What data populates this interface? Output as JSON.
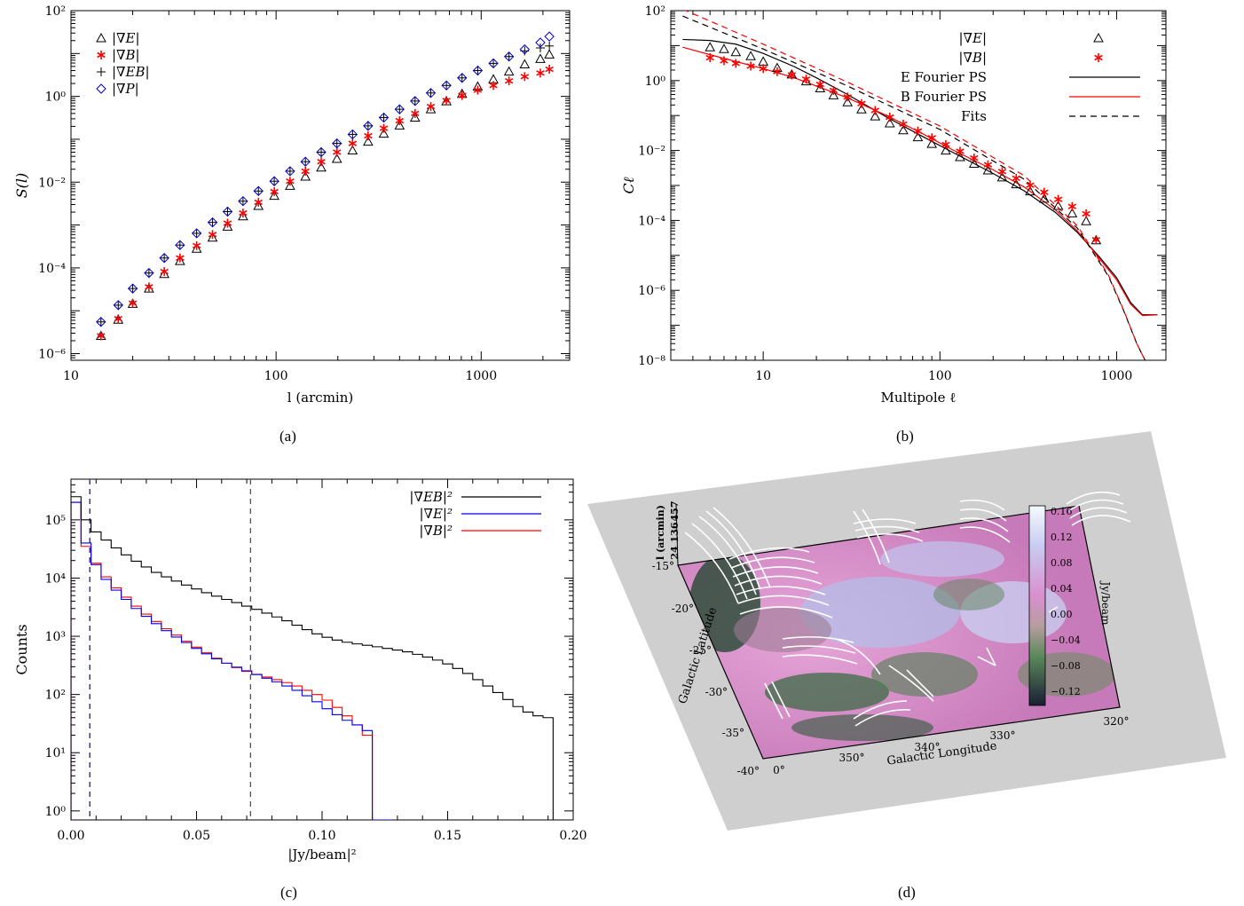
{
  "panel_labels": [
    "(a)",
    "(b)",
    "(c)",
    "(d)"
  ],
  "chart_data": [
    {
      "type": "scatter",
      "panel": "(a)",
      "xlabel": "l (arcmin)",
      "ylabel": "S(l)",
      "xscale": "log",
      "yscale": "log",
      "xlim": [
        10,
        2700
      ],
      "ylim": [
        7e-07,
        100
      ],
      "xticks": [
        "10",
        "100",
        "1000"
      ],
      "yticks": [
        "10⁻⁶",
        "10⁻⁴",
        "10⁻²",
        "10⁰",
        "10²"
      ],
      "legend": "top-left",
      "x": [
        14,
        17,
        20,
        24,
        28.5,
        34,
        41,
        49,
        58,
        69,
        82,
        98,
        117,
        139,
        166,
        198,
        236,
        281,
        335,
        400,
        476,
        568,
        677,
        807,
        962,
        1147,
        1367,
        1630,
        1943,
        2150
      ],
      "series": [
        {
          "name": "|∇E|",
          "marker": "triangle",
          "color": "#000000",
          "values": [
            2.6e-06,
            6.2e-06,
            1.45e-05,
            3.3e-05,
            7.2e-05,
            0.000145,
            0.00028,
            0.00051,
            0.00092,
            0.0016,
            0.0028,
            0.0048,
            0.0082,
            0.0135,
            0.022,
            0.035,
            0.055,
            0.088,
            0.135,
            0.21,
            0.32,
            0.5,
            0.77,
            1.15,
            1.7,
            2.5,
            3.8,
            5.6,
            7.5,
            9.5
          ]
        },
        {
          "name": "|∇B|",
          "marker": "asterisk",
          "color": "#ff0000",
          "values": [
            2.6e-06,
            6.5e-06,
            1.5e-05,
            3.6e-05,
            8.2e-05,
            0.00017,
            0.00033,
            0.0006,
            0.0011,
            0.0019,
            0.0034,
            0.006,
            0.0105,
            0.018,
            0.03,
            0.05,
            0.08,
            0.12,
            0.18,
            0.27,
            0.4,
            0.58,
            0.8,
            1.05,
            1.4,
            1.8,
            2.3,
            2.9,
            3.5,
            4.3
          ]
        },
        {
          "name": "|∇EB|",
          "marker": "plus",
          "color": "#000000",
          "values": [
            5.5e-06,
            1.35e-05,
            3.3e-05,
            7.6e-05,
            0.00017,
            0.00034,
            0.00064,
            0.00115,
            0.00205,
            0.0036,
            0.0062,
            0.0105,
            0.018,
            0.03,
            0.05,
            0.08,
            0.13,
            0.205,
            0.32,
            0.5,
            0.78,
            1.2,
            1.8,
            2.7,
            4,
            5.9,
            8.5,
            11.5,
            13.5,
            15
          ]
        },
        {
          "name": "|∇P|",
          "marker": "diamond",
          "color": "#0000cc",
          "values": [
            5.5e-06,
            1.35e-05,
            3.3e-05,
            7.6e-05,
            0.00017,
            0.00034,
            0.00064,
            0.00115,
            0.00205,
            0.0036,
            0.0062,
            0.0105,
            0.018,
            0.03,
            0.05,
            0.08,
            0.13,
            0.205,
            0.32,
            0.5,
            0.78,
            1.2,
            1.8,
            2.7,
            4,
            5.9,
            8.5,
            12.5,
            18,
            25
          ]
        }
      ]
    },
    {
      "type": "line",
      "panel": "(b)",
      "xlabel": "Multipole ℓ",
      "ylabel": "Cℓ",
      "xscale": "log",
      "yscale": "log",
      "xlim": [
        3,
        1900
      ],
      "ylim": [
        1e-08,
        100
      ],
      "xticks": [
        "10",
        "100",
        "1000"
      ],
      "yticks": [
        "10⁻⁸",
        "10⁻⁶",
        "10⁻⁴",
        "10⁻²",
        "10⁰",
        "10²"
      ],
      "legend": "top-right",
      "legend_entries": [
        "|∇E|",
        "|∇B|",
        "E Fourier PS",
        "B Fourier PS",
        "Fits"
      ],
      "points_x": [
        5,
        6,
        7,
        8.5,
        10,
        12,
        14.5,
        17.5,
        21,
        25,
        30,
        36,
        43,
        52,
        62,
        75,
        90,
        108,
        130,
        156,
        187,
        225,
        270,
        324,
        389,
        467,
        560,
        672,
        765
      ],
      "series": [
        {
          "name": "|∇E|",
          "marker": "triangle",
          "color": "#000000",
          "values": [
            9,
            8,
            6.5,
            5,
            3.5,
            2.3,
            1.5,
            0.95,
            0.6,
            0.38,
            0.24,
            0.15,
            0.095,
            0.06,
            0.038,
            0.024,
            0.0155,
            0.01,
            0.0065,
            0.0042,
            0.0027,
            0.0017,
            0.00108,
            0.00068,
            0.00042,
            0.00026,
            0.00016,
            9.5e-05,
            5.5e-06
          ]
        },
        {
          "name": "|∇B|",
          "marker": "asterisk",
          "color": "#ff0000",
          "values": [
            4.5,
            3.7,
            3.1,
            2.6,
            2.2,
            1.8,
            1.45,
            1.1,
            0.78,
            0.52,
            0.34,
            0.22,
            0.14,
            0.09,
            0.057,
            0.036,
            0.023,
            0.0148,
            0.0095,
            0.0061,
            0.0039,
            0.0025,
            0.0016,
            0.00102,
            0.00064,
            0.0004,
            0.00025,
            0.000155,
            6.5e-06
          ]
        },
        {
          "name": "E Fourier PS",
          "style": "solid",
          "color": "#000000",
          "x": [
            3.5,
            5,
            7,
            10,
            15,
            20,
            30,
            50,
            80,
            120,
            200,
            300,
            450,
            600,
            800,
            1000,
            1200,
            1400,
            1700
          ],
          "values": [
            15,
            14,
            11,
            6,
            2.5,
            1.2,
            0.4,
            0.09,
            0.025,
            0.0085,
            0.0022,
            0.0007,
            0.00017,
            4.5e-05,
            9e-06,
            2.3e-06,
            4.5e-07,
            2e-07,
            2e-07
          ]
        },
        {
          "name": "B Fourier PS",
          "style": "solid",
          "color": "#ff0000",
          "x": [
            3.5,
            5,
            7,
            10,
            15,
            20,
            30,
            50,
            80,
            120,
            200,
            300,
            450,
            600,
            800,
            1000,
            1200,
            1400,
            1700
          ],
          "values": [
            9,
            5.5,
            3.5,
            2.2,
            1.2,
            0.7,
            0.32,
            0.1,
            0.03,
            0.01,
            0.0028,
            0.0009,
            0.0002,
            5e-05,
            8e-06,
            2e-06,
            4e-07,
            1.9e-07,
            2e-07
          ]
        },
        {
          "name": "Fits E",
          "style": "dashed",
          "color": "#000000",
          "x": [
            3.5,
            10,
            30,
            100,
            300,
            600,
            900,
            1100,
            1300,
            1500
          ],
          "values": [
            70,
            8,
            0.7,
            0.04,
            0.0015,
            6e-05,
            2.5e-06,
            2.5e-07,
            3e-08,
            7e-09
          ]
        },
        {
          "name": "Fits B",
          "style": "dashed",
          "color": "#ff0000",
          "x": [
            3.5,
            10,
            30,
            100,
            300,
            600,
            900,
            1100,
            1300,
            1500
          ],
          "values": [
            110,
            11,
            0.9,
            0.05,
            0.0019,
            7e-05,
            2.7e-06,
            2.6e-07,
            3e-08,
            7e-09
          ]
        }
      ]
    },
    {
      "type": "histogram",
      "panel": "(c)",
      "xlabel": "|Jy/beam|²",
      "ylabel": "Counts",
      "yscale": "log",
      "xlim": [
        0,
        0.2
      ],
      "ylim": [
        0.7,
        500000
      ],
      "xticks": [
        "0.00",
        "0.05",
        "0.10",
        "0.15",
        "0.20"
      ],
      "yticks": [
        "10⁰",
        "10¹",
        "10²",
        "10³",
        "10⁴",
        "10⁵"
      ],
      "legend": "top-right",
      "bin_width": 0.004,
      "vlines": [
        {
          "x": 0.0075,
          "color": "#ff0000",
          "style": "dashed"
        },
        {
          "x": 0.0075,
          "color": "#3333aa",
          "style": "dashed"
        },
        {
          "x": 0.0715,
          "color": "#555555",
          "style": "dashed"
        }
      ],
      "series": [
        {
          "name": "|∇EB|²",
          "color": "#000000",
          "values": [
            250000,
            100000,
            62000,
            45000,
            33000,
            25000,
            19500,
            15500,
            12500,
            10500,
            8900,
            7600,
            6500,
            5600,
            4900,
            4300,
            3800,
            3300,
            2900,
            2500,
            2150,
            1850,
            1550,
            1300,
            1100,
            960,
            860,
            790,
            740,
            700,
            660,
            620,
            580,
            540,
            490,
            440,
            390,
            335,
            280,
            230,
            180,
            140,
            108,
            82,
            62,
            50,
            43,
            40
          ]
        },
        {
          "name": "|∇E|²",
          "color": "#0000ff",
          "values": [
            200000,
            40000,
            17000,
            9500,
            6200,
            4300,
            3000,
            2200,
            1650,
            1250,
            970,
            780,
            620,
            500,
            410,
            345,
            295,
            255,
            220,
            190,
            165,
            140,
            118,
            95,
            75,
            57,
            45,
            36,
            30,
            24,
            0,
            0
          ]
        },
        {
          "name": "|∇B|²",
          "color": "#ff0000",
          "values": [
            200000,
            35000,
            18000,
            10500,
            6800,
            4700,
            3300,
            2400,
            1800,
            1350,
            1050,
            820,
            650,
            520,
            420,
            345,
            290,
            250,
            222,
            200,
            180,
            160,
            140,
            118,
            100,
            80,
            60,
            43,
            30,
            20,
            0,
            0
          ]
        }
      ]
    }
  ],
  "map_panel": {
    "panel": "(d)",
    "title_axis": "l (arcmin)",
    "l_ticks": [
      "457",
      "136",
      "24"
    ],
    "lat_ticks": [
      "-15°",
      "-20°",
      "-25°",
      "-30°",
      "-35°",
      "-40°"
    ],
    "lon_ticks": [
      "0°",
      "350°",
      "340°",
      "330°",
      "320°"
    ],
    "xlabel": "Galactic Longitude",
    "ylabel": "Galactic Latitude",
    "colorbar_label": "Jy/beam",
    "colorbar_ticks": [
      "0.16",
      "0.12",
      "0.08",
      "0.04",
      "0.00",
      "−0.04",
      "−0.08",
      "−0.12"
    ]
  }
}
